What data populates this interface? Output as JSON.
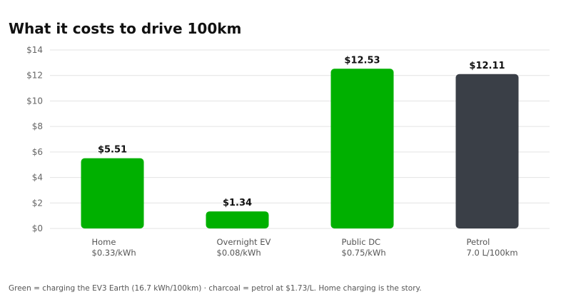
{
  "chart_data": {
    "type": "bar",
    "title": "What it costs to drive 100km",
    "categories": [
      "Home",
      "Overnight EV",
      "Public DC",
      "Petrol"
    ],
    "sublabels": [
      "$0.33/kWh",
      "$0.08/kWh",
      "$0.75/kWh",
      "7.0 L/100km"
    ],
    "values": [
      5.51,
      1.34,
      12.53,
      12.11
    ],
    "value_labels": [
      "$5.51",
      "$1.34",
      "$12.53",
      "$12.11"
    ],
    "bar_colors": [
      "#00b000",
      "#00b000",
      "#00b000",
      "#3a3f47"
    ],
    "ylim": [
      0,
      14
    ],
    "yticks": [
      0,
      2,
      4,
      6,
      8,
      10,
      12,
      14
    ],
    "ytick_labels": [
      "$0",
      "$2",
      "$4",
      "$6",
      "$8",
      "$10",
      "$12",
      "$14"
    ],
    "grid": true,
    "xlabel": "",
    "ylabel": ""
  },
  "footnote": "Green = charging the EV3 Earth (16.7 kWh/100km) · charcoal = petrol at $1.73/L. Home charging is the story."
}
